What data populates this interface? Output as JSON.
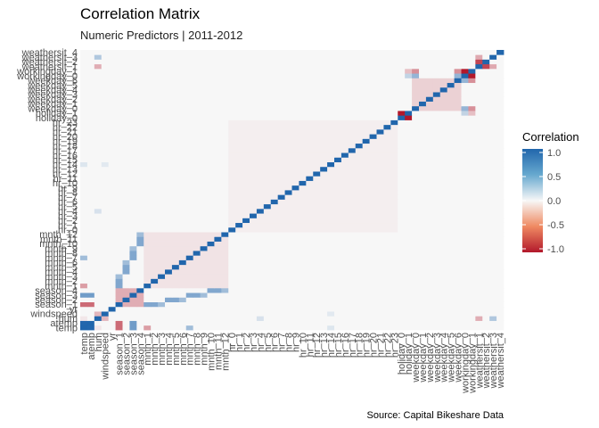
{
  "header": {
    "title": "Correlation Matrix",
    "subtitle": "Numeric Predictors | 2011-2012"
  },
  "caption": "Source: Capital Bikeshare Data",
  "chart_data": {
    "type": "heatmap",
    "title": "Correlation Matrix",
    "subtitle": "Numeric Predictors | 2011-2012",
    "variables": [
      "temp",
      "atemp",
      "hum",
      "windspeed",
      "yr",
      "season_1",
      "season_2",
      "season_3",
      "season_4",
      "mnth_1",
      "mnth_2",
      "mnth_3",
      "mnth_4",
      "mnth_5",
      "mnth_6",
      "mnth_7",
      "mnth_8",
      "mnth_9",
      "mnth_10",
      "mnth_11",
      "mnth_12",
      "hr_0",
      "hr_1",
      "hr_2",
      "hr_3",
      "hr_4",
      "hr_5",
      "hr_6",
      "hr_7",
      "hr_8",
      "hr_9",
      "hr_10",
      "hr_11",
      "hr_12",
      "hr_13",
      "hr_14",
      "hr_15",
      "hr_16",
      "hr_17",
      "hr_18",
      "hr_19",
      "hr_20",
      "hr_21",
      "hr_22",
      "hr_23",
      "holiday_0",
      "holiday_1",
      "weekday_0",
      "weekday_1",
      "weekday_2",
      "weekday_3",
      "weekday_4",
      "weekday_5",
      "weekday_6",
      "workingday_0",
      "workingday_1",
      "weathersit_1",
      "weathersit_2",
      "weathersit_3",
      "weathersit_4"
    ],
    "legend": {
      "title": "Correlation",
      "ticks": [
        "1.0",
        "0.5",
        "0.0",
        "-0.5",
        "-1.0"
      ],
      "range": [
        -1,
        1
      ],
      "colors": {
        "low": "#b2182b",
        "mid": "#f7f7f7",
        "high": "#2166ac"
      },
      "placement": "right"
    },
    "block_correlations": [
      {
        "a": "season_*",
        "b": "season_*",
        "value": -0.33
      },
      {
        "a": "mnth_*",
        "b": "mnth_*",
        "value": -0.09
      },
      {
        "a": "hr_*",
        "b": "hr_*",
        "value": -0.04
      },
      {
        "a": "weekday_*",
        "b": "weekday_*",
        "value": -0.17
      },
      {
        "a": "holiday_0",
        "b": "holiday_1",
        "value": -1.0
      },
      {
        "a": "workingday_0",
        "b": "workingday_1",
        "value": -1.0
      },
      {
        "a": "weathersit_1",
        "b": "weathersit_2",
        "value": -0.8
      },
      {
        "a": "weathersit_1",
        "b": "weathersit_3",
        "value": -0.35
      },
      {
        "a": "temp",
        "b": "atemp",
        "value": 0.99
      },
      {
        "a": "hum",
        "b": "windspeed",
        "value": -0.29
      },
      {
        "a": "temp",
        "b": "hum",
        "value": -0.07
      },
      {
        "a": "workingday_1",
        "b": "weekday_0",
        "value": -0.46
      },
      {
        "a": "workingday_1",
        "b": "weekday_6",
        "value": -0.46
      },
      {
        "a": "workingday_0",
        "b": "weekday_0",
        "value": 0.46
      },
      {
        "a": "workingday_0",
        "b": "weekday_6",
        "value": 0.46
      },
      {
        "a": "holiday_1",
        "b": "workingday_0",
        "value": 0.25
      },
      {
        "a": "holiday_1",
        "b": "workingday_1",
        "value": -0.25
      },
      {
        "a": "hum",
        "b": "weathersit_3",
        "value": 0.33
      },
      {
        "a": "hum",
        "b": "weathersit_1",
        "value": -0.33
      },
      {
        "a": "temp",
        "b": "season_1",
        "value": -0.63
      },
      {
        "a": "temp",
        "b": "season_3",
        "value": 0.63
      },
      {
        "a": "atemp",
        "b": "season_1",
        "value": -0.63
      },
      {
        "a": "atemp",
        "b": "season_3",
        "value": 0.63
      },
      {
        "a": "temp",
        "b": "mnth_7",
        "value": 0.4
      },
      {
        "a": "temp",
        "b": "mnth_1",
        "value": -0.4
      },
      {
        "a": "season_1",
        "b": "mnth_1",
        "value": 0.55
      },
      {
        "a": "season_1",
        "b": "mnth_2",
        "value": 0.55
      },
      {
        "a": "season_1",
        "b": "mnth_3",
        "value": 0.4
      },
      {
        "a": "season_2",
        "b": "mnth_4",
        "value": 0.55
      },
      {
        "a": "season_2",
        "b": "mnth_5",
        "value": 0.55
      },
      {
        "a": "season_2",
        "b": "mnth_6",
        "value": 0.4
      },
      {
        "a": "season_3",
        "b": "mnth_7",
        "value": 0.55
      },
      {
        "a": "season_3",
        "b": "mnth_8",
        "value": 0.55
      },
      {
        "a": "season_3",
        "b": "mnth_9",
        "value": 0.4
      },
      {
        "a": "season_4",
        "b": "mnth_10",
        "value": 0.55
      },
      {
        "a": "season_4",
        "b": "mnth_11",
        "value": 0.55
      },
      {
        "a": "season_4",
        "b": "mnth_12",
        "value": 0.4
      },
      {
        "a": "hum",
        "b": "hr_4",
        "value": 0.15
      },
      {
        "a": "temp",
        "b": "hr_14",
        "value": 0.12
      },
      {
        "a": "windspeed",
        "b": "hr_14",
        "value": 0.1
      }
    ]
  }
}
